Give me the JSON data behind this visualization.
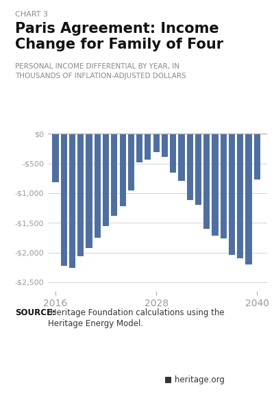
{
  "chart_label": "CHART 3",
  "title_line1": "Paris Agreement: Income",
  "title_line2": "Change for Family of Four",
  "subtitle": "PERSONAL INCOME DIFFERENTIAL BY YEAR, IN\nTHOUSANDS OF INFLATION-ADJUSTED DOLLARS",
  "bar_color": "#4f6fa0",
  "years": [
    2016,
    2017,
    2018,
    2019,
    2020,
    2021,
    2022,
    2023,
    2024,
    2025,
    2026,
    2027,
    2028,
    2029,
    2030,
    2031,
    2032,
    2033,
    2034,
    2035,
    2036,
    2037,
    2038,
    2039,
    2040
  ],
  "values": [
    -820,
    -2230,
    -2260,
    -2060,
    -1920,
    -1750,
    -1560,
    -1380,
    -1220,
    -950,
    -480,
    -430,
    -310,
    -390,
    -650,
    -790,
    -1120,
    -1200,
    -1600,
    -1720,
    -1760,
    -2040,
    -2100,
    -2200,
    -770
  ],
  "ytick_labels": [
    "$0",
    "-$500",
    "-$1,000",
    "-$1,500",
    "-$2,000",
    "-$2,500"
  ],
  "ytick_values": [
    0,
    -500,
    -1000,
    -1500,
    -2000,
    -2500
  ],
  "xtick_years": [
    2016,
    2028,
    2040
  ],
  "ylim_min": -2650,
  "ylim_max": 120,
  "source_bold": "SOURCE:",
  "source_rest": " Heritage Foundation calculations using the\nHeritage Energy Model.",
  "footer_logo_text": "heritage.org",
  "bg_color": "#ffffff",
  "grid_color": "#cccccc",
  "axis_color": "#aaaaaa",
  "tick_label_color": "#999999"
}
